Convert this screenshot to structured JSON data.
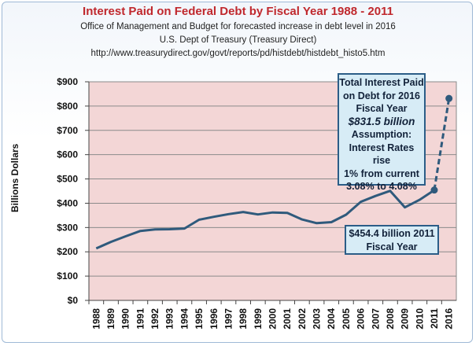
{
  "header": {
    "title": "Interest Paid on Federal Debt by Fiscal Year 1988 - 2011",
    "subtitle1": "Office of Management  and Budget for forecasted increase in debt level in 2016",
    "subtitle2": "U.S. Dept of Treasury (Treasury Direct)",
    "subtitle3": "http://www.treasurydirect.gov/govt/reports/pd/histdebt/histdebt_histo5.htm"
  },
  "annotations": {
    "forecast": {
      "line1": "Total Interest Paid",
      "line2": "on Debt for 2016",
      "line3": "Fiscal Year",
      "amount": "$831.5 billion",
      "line4": "Assumption:",
      "line5": "Interest Rates rise",
      "line6": "1% from current",
      "line7": "3.08% to 4.08%"
    },
    "actual": {
      "line1": "$454.4 billion 2011",
      "line2": "Fiscal Year"
    }
  },
  "colors": {
    "title": "#c0282d",
    "plot_bg": "#f3d6d6",
    "line": "#2f5a7c",
    "callout_bg": "#d7ecf6",
    "callout_border": "#2b5d87"
  },
  "chart_data": {
    "type": "line",
    "title": "Interest Paid on Federal Debt by Fiscal Year 1988 - 2011",
    "ylabel": "Billions Dollars",
    "xlabel": "",
    "ylim": [
      0,
      900
    ],
    "ytick_labels": [
      "$0",
      "$100",
      "$200",
      "$300",
      "$400",
      "$500",
      "$600",
      "$700",
      "$800",
      "$900"
    ],
    "grid": "horizontal",
    "categories": [
      "1988",
      "1989",
      "1990",
      "1991",
      "1992",
      "1993",
      "1994",
      "1995",
      "1996",
      "1997",
      "1998",
      "1999",
      "2000",
      "2001",
      "2002",
      "2003",
      "2004",
      "2005",
      "2006",
      "2007",
      "2008",
      "2009",
      "2010",
      "2011",
      "2016"
    ],
    "series": [
      {
        "values": [
          214,
          241,
          264,
          286,
          292,
          293,
          296,
          332,
          344,
          355,
          364,
          354,
          362,
          360,
          333,
          318,
          322,
          353,
          406,
          430,
          451,
          383,
          414,
          454,
          null
        ],
        "style": "solid"
      },
      {
        "values": [
          null,
          null,
          null,
          null,
          null,
          null,
          null,
          null,
          null,
          null,
          null,
          null,
          null,
          null,
          null,
          null,
          null,
          null,
          null,
          null,
          null,
          null,
          null,
          454.4,
          831.5
        ],
        "style": "dashed"
      }
    ]
  }
}
